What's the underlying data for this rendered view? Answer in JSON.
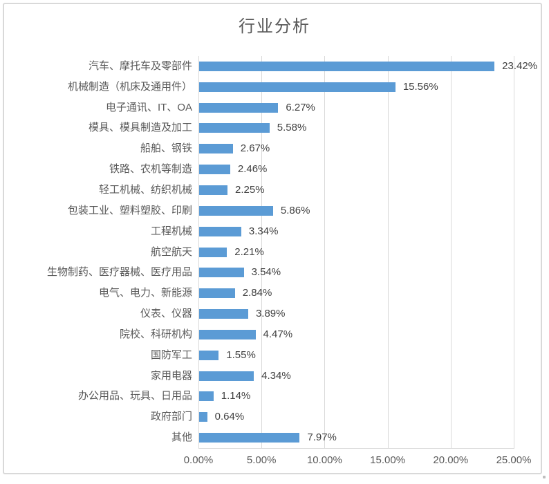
{
  "chart_data": {
    "type": "bar",
    "orientation": "horizontal",
    "title": "行业分析",
    "categories": [
      "汽车、摩托车及零部件",
      "机械制造（机床及通用件）",
      "电子通讯、IT、OA",
      "模具、模具制造及加工",
      "船舶、钢铁",
      "铁路、农机等制造",
      "轻工机械、纺织机械",
      "包装工业、塑料塑胶、印刷",
      "工程机械",
      "航空航天",
      "生物制药、医疗器械、医疗用品",
      "电气、电力、新能源",
      "仪表、仪器",
      "院校、科研机构",
      "国防军工",
      "家用电器",
      "办公用品、玩具、日用品",
      "政府部门",
      "其他"
    ],
    "values": [
      23.42,
      15.56,
      6.27,
      5.58,
      2.67,
      2.46,
      2.25,
      5.86,
      3.34,
      2.21,
      3.54,
      2.84,
      3.89,
      4.47,
      1.55,
      4.34,
      1.14,
      0.64,
      7.97
    ],
    "value_labels": [
      "23.42%",
      "15.56%",
      "6.27%",
      "5.58%",
      "2.67%",
      "2.46%",
      "2.25%",
      "5.86%",
      "3.34%",
      "2.21%",
      "3.54%",
      "2.84%",
      "3.89%",
      "4.47%",
      "1.55%",
      "4.34%",
      "1.14%",
      "0.64%",
      "7.97%"
    ],
    "x_ticks": [
      "0.00%",
      "5.00%",
      "10.00%",
      "15.00%",
      "20.00%",
      "25.00%"
    ],
    "xlim": [
      0,
      25
    ],
    "grid": true,
    "legend": "none",
    "bar_color": "#5b9bd5",
    "gridline_color": "#d9d9d9",
    "title_color": "#595959",
    "label_color": "#595959",
    "value_label_color": "#404040"
  }
}
